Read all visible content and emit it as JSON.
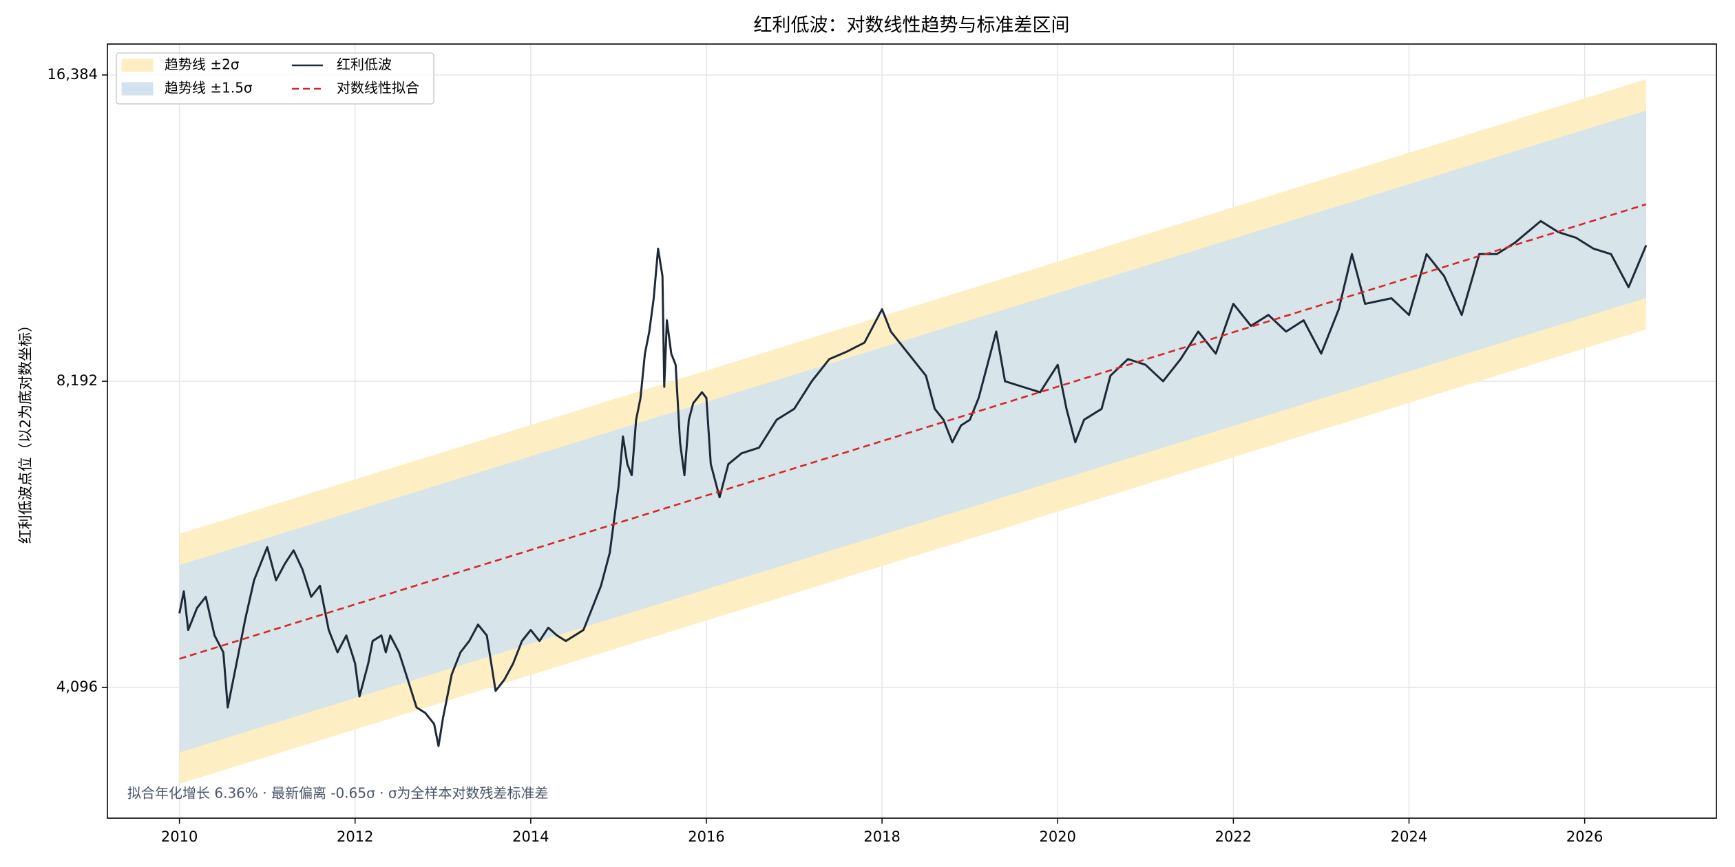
{
  "chart_data": {
    "type": "line",
    "title": "红利低波：对数线性趋势与标准差区间",
    "ylabel": "红利低波点位（以2为底对数坐标）",
    "annotation": "拟合年化增长 6.36% · 最新偏离 -0.65σ · σ为全样本对数残差标准差",
    "xlim": [
      2009.18,
      2027.5
    ],
    "xticks": [
      2010,
      2012,
      2014,
      2016,
      2018,
      2020,
      2022,
      2024,
      2026
    ],
    "ylim": [
      3048,
      17572
    ],
    "yscale": "log2",
    "yticks": [
      {
        "value": 4096,
        "label": "4,096"
      },
      {
        "value": 8192,
        "label": "8,192"
      },
      {
        "value": 16384,
        "label": "16,384"
      }
    ],
    "grid": true,
    "legend": "upper left",
    "bands": [
      {
        "name": "趋势线 ±2σ",
        "color": "#fdefc3",
        "x": [
          2010,
          2026.7
        ],
        "upper": [
          5800,
          16226
        ],
        "lower": [
          3294,
          9214
        ]
      },
      {
        "name": "趋势线 ±1.5σ",
        "color": "#d3e2ee",
        "x": [
          2010,
          2026.7
        ],
        "upper": [
          5403,
          15113
        ],
        "lower": [
          3536,
          9892
        ]
      }
    ],
    "series": [
      {
        "name": "红利低波",
        "color": "#1e2837",
        "linestyle": "solid",
        "x": [
          2010.0,
          2010.05,
          2010.1,
          2010.2,
          2010.3,
          2010.4,
          2010.5,
          2010.55,
          2010.65,
          2010.75,
          2010.85,
          2010.95,
          2011.0,
          2011.1,
          2011.2,
          2011.3,
          2011.4,
          2011.5,
          2011.6,
          2011.7,
          2011.8,
          2011.9,
          2012.0,
          2012.05,
          2012.15,
          2012.2,
          2012.3,
          2012.35,
          2012.4,
          2012.5,
          2012.6,
          2012.7,
          2012.8,
          2012.9,
          2012.95,
          2013.0,
          2013.1,
          2013.2,
          2013.3,
          2013.4,
          2013.5,
          2013.6,
          2013.7,
          2013.8,
          2013.9,
          2014.0,
          2014.1,
          2014.2,
          2014.3,
          2014.4,
          2014.5,
          2014.6,
          2014.7,
          2014.8,
          2014.9,
          2014.95,
          2015.0,
          2015.05,
          2015.1,
          2015.15,
          2015.2,
          2015.25,
          2015.3,
          2015.35,
          2015.4,
          2015.45,
          2015.5,
          2015.52,
          2015.55,
          2015.6,
          2015.65,
          2015.7,
          2015.75,
          2015.8,
          2015.85,
          2015.95,
          2016.0,
          2016.05,
          2016.15,
          2016.25,
          2016.4,
          2016.6,
          2016.8,
          2017.0,
          2017.2,
          2017.4,
          2017.6,
          2017.8,
          2018.0,
          2018.1,
          2018.3,
          2018.5,
          2018.6,
          2018.7,
          2018.8,
          2018.9,
          2019.0,
          2019.1,
          2019.2,
          2019.3,
          2019.4,
          2019.6,
          2019.8,
          2020.0,
          2020.1,
          2020.2,
          2020.3,
          2020.5,
          2020.6,
          2020.8,
          2021.0,
          2021.2,
          2021.4,
          2021.6,
          2021.8,
          2022.0,
          2022.2,
          2022.4,
          2022.6,
          2022.8,
          2023.0,
          2023.2,
          2023.35,
          2023.5,
          2023.8,
          2024.0,
          2024.2,
          2024.4,
          2024.6,
          2024.8,
          2025.0,
          2025.2,
          2025.5,
          2025.7,
          2025.9,
          2026.1,
          2026.3,
          2026.5,
          2026.7
        ],
        "values": [
          4845,
          5092,
          4666,
          4903,
          5030,
          4608,
          4436,
          3916,
          4326,
          4784,
          5222,
          5489,
          5628,
          5222,
          5419,
          5587,
          5353,
          5030,
          5157,
          4666,
          4436,
          4608,
          4326,
          4014,
          4326,
          4551,
          4608,
          4436,
          4608,
          4436,
          4170,
          3916,
          3867,
          3772,
          3588,
          3818,
          4219,
          4436,
          4551,
          4723,
          4608,
          4065,
          4170,
          4326,
          4551,
          4666,
          4551,
          4690,
          4608,
          4551,
          4608,
          4666,
          4903,
          5157,
          5558,
          5993,
          6459,
          7230,
          6791,
          6623,
          7508,
          7889,
          8720,
          9167,
          9884,
          11059,
          10392,
          8090,
          9404,
          8720,
          8503,
          7135,
          6623,
          7508,
          7795,
          7991,
          7889,
          6791,
          6300,
          6791,
          6959,
          7049,
          7508,
          7696,
          8192,
          8614,
          8761,
          8941,
          9642,
          9167,
          8720,
          8295,
          7696,
          7508,
          7135,
          7414,
          7508,
          7889,
          8503,
          9167,
          8192,
          8090,
          7991,
          8503,
          7696,
          7135,
          7508,
          7696,
          8295,
          8614,
          8503,
          8192,
          8614,
          9167,
          8720,
          9761,
          9286,
          9519,
          9167,
          9404,
          8720,
          9642,
          10924,
          9761,
          9884,
          9519,
          10924,
          10392,
          9519,
          10924,
          10924,
          11199,
          11772,
          11481,
          11338,
          11059,
          10924,
          10134,
          11145
        ]
      },
      {
        "name": "对数线性拟合",
        "color": "#d62728",
        "linestyle": "dashed",
        "x": [
          2010,
          2026.7
        ],
        "values": [
          4371,
          12227
        ]
      }
    ]
  }
}
